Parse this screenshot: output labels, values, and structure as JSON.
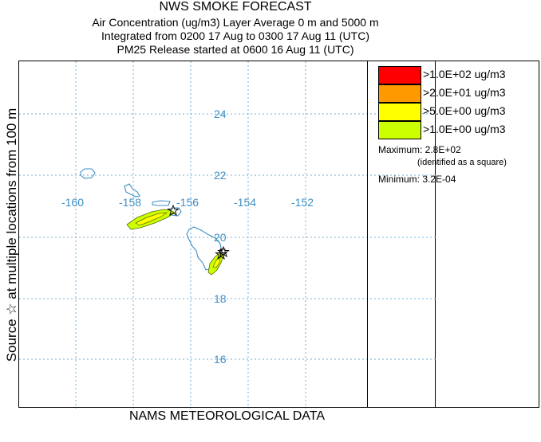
{
  "header": {
    "title": "NWS SMOKE FORECAST",
    "line2": "Air Concentration (ug/m3) Layer Average    0 m and  5000 m",
    "line3": "Integrated from 0200 17 Aug to 0300 17 Aug 11 (UTC)",
    "line4": "PM25 Release started at 0600 16 Aug 11 (UTC)"
  },
  "side_label": "Source ☆ at multiple locations   from   100 m",
  "footer": "NAMS METEOROLOGICAL DATA",
  "map": {
    "lat_labels": [
      "24",
      "22",
      "20",
      "18",
      "16"
    ],
    "lon_labels": [
      "-160",
      "-158",
      "-156",
      "-154",
      "-152"
    ],
    "grid_color": "#6fb0d9",
    "coast_color": "#3d8fc6"
  },
  "legend": {
    "items": [
      {
        "label": ">1.0E+02 ug/m3",
        "color": "#ff0000"
      },
      {
        "label": ">2.0E+01 ug/m3",
        "color": "#ff9900"
      },
      {
        "label": ">5.0E+00 ug/m3",
        "color": "#ffff00"
      },
      {
        "label": ">1.0E+00 ug/m3",
        "color": "#ccff00"
      }
    ],
    "maximum": "Maximum: 2.8E+02",
    "maximum_note": "(identified as a square)",
    "minimum": "Minimum: 3.2E-04"
  }
}
